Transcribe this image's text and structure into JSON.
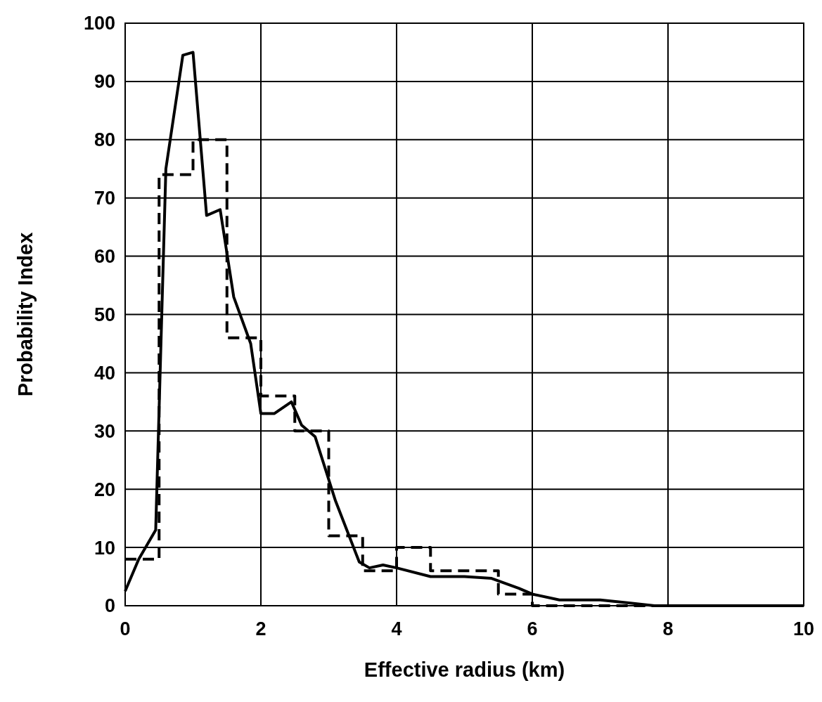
{
  "chart_data": {
    "type": "line",
    "xlabel": "Effective radius (km)",
    "ylabel": "Probability Index",
    "xlim": [
      0,
      10
    ],
    "xticks": [
      0,
      2,
      4,
      6,
      8,
      10
    ],
    "ylim": [
      0,
      100
    ],
    "yticks": [
      0,
      10,
      20,
      30,
      40,
      50,
      60,
      70,
      80,
      90,
      100
    ],
    "grid": true,
    "marker": "none",
    "series": [
      {
        "line_style": "solid",
        "color": "#000000",
        "x": [
          0,
          0.2,
          0.45,
          0.6,
          0.85,
          1.0,
          1.2,
          1.4,
          1.6,
          1.85,
          2.0,
          2.2,
          2.45,
          2.6,
          2.8,
          3.1,
          3.45,
          3.6,
          3.8,
          4.0,
          4.5,
          5.0,
          5.4,
          5.8,
          6.0,
          6.4,
          7.0,
          7.4,
          7.8,
          10
        ],
        "values": [
          2.5,
          8,
          13,
          75,
          94.5,
          95,
          67,
          68,
          53,
          45,
          33,
          33,
          35,
          31,
          29,
          18,
          7.5,
          6.5,
          7,
          6.5,
          5,
          5,
          4.7,
          3,
          2,
          1,
          1,
          0.5,
          0,
          0
        ]
      },
      {
        "type": "step",
        "line_style": "dashed",
        "color": "#000000",
        "x": [
          0,
          0.5,
          1,
          1.5,
          2,
          2.5,
          3,
          3.5,
          4,
          4.5,
          5,
          5.5,
          6,
          10
        ],
        "values": [
          8,
          74,
          80,
          46,
          36,
          30,
          12,
          6,
          10,
          6,
          6,
          2,
          0,
          0
        ]
      }
    ]
  }
}
